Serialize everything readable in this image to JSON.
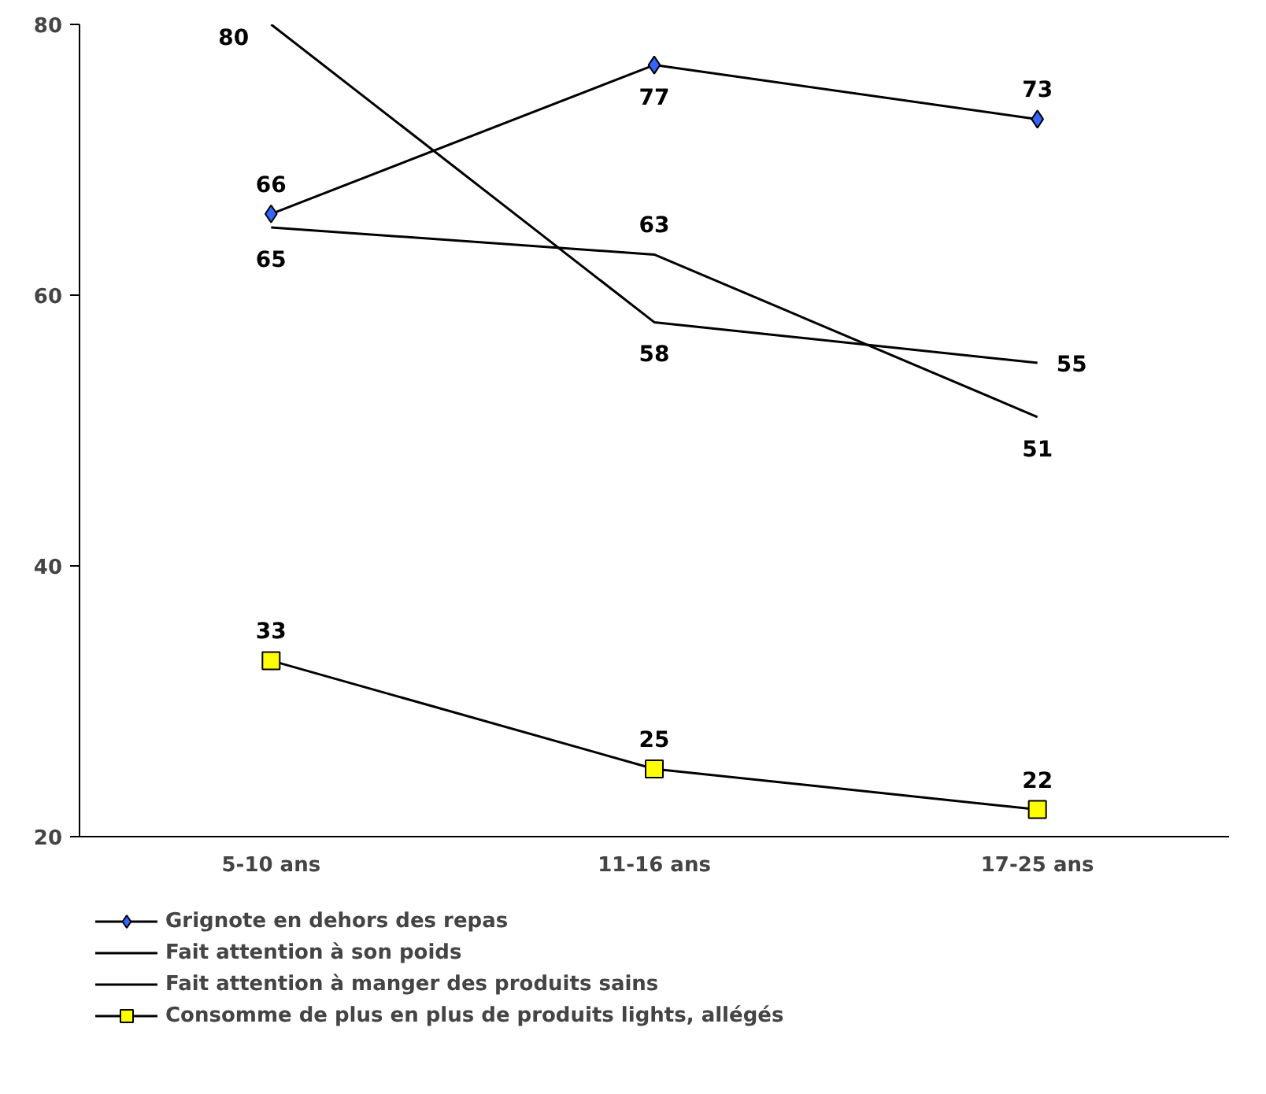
{
  "chart_data": {
    "type": "line",
    "categories": [
      "5-10 ans",
      "11-16 ans",
      "17-25 ans"
    ],
    "series": [
      {
        "name": "Grignote en dehors des repas",
        "color": "#3366ff",
        "values": [
          66,
          77,
          73
        ],
        "marker": "diamond"
      },
      {
        "name": "Fait attention à son poids",
        "color": "#000000",
        "values": [
          80,
          58,
          55
        ],
        "marker": "none"
      },
      {
        "name": "Fait attention à manger des produits sains",
        "color": "#000000",
        "values": [
          65,
          63,
          51
        ],
        "marker": "none"
      },
      {
        "name": "Consomme de plus en plus de produits lights, allégés",
        "color": "#ffff00",
        "values": [
          33,
          25,
          22
        ],
        "marker": "square"
      }
    ],
    "ylim": [
      20,
      80
    ],
    "yticks": [
      20,
      40,
      60,
      80
    ],
    "grid": false,
    "legend": "bottom",
    "data_labels": true
  }
}
